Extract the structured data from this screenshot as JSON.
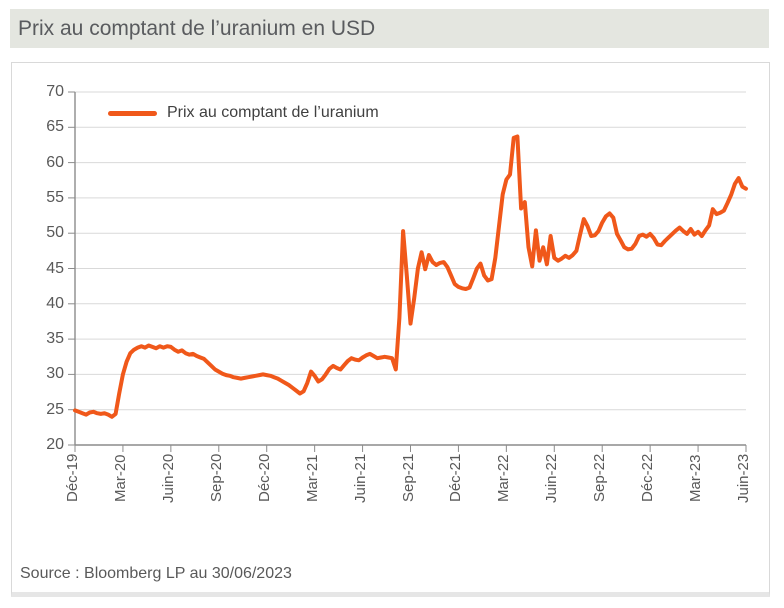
{
  "header": {
    "title": "Prix au comptant de l’uranium en USD"
  },
  "legend": {
    "label": "Prix au comptant de l’uranium"
  },
  "source": {
    "text": "Source : Bloomberg LP au 30/06/2023"
  },
  "colors": {
    "line": "#f0581a",
    "header_bg": "#e4e6e0",
    "axis": "#8c8c8c",
    "grid": "#d9d9d9"
  },
  "chart_data": {
    "type": "line",
    "title": "Prix au comptant de l’uranium en USD",
    "ylabel": "",
    "xlabel": "",
    "ylim": [
      20,
      70
    ],
    "y_ticks": [
      20,
      25,
      30,
      35,
      40,
      45,
      50,
      55,
      60,
      65,
      70
    ],
    "x_tick_labels": [
      "Déc-19",
      "Mar-20",
      "Juin-20",
      "Sep-20",
      "Déc-20",
      "Mar-21",
      "Juin-21",
      "Sep-21",
      "Déc-21",
      "Mar-22",
      "Juin-22",
      "Sep-22",
      "Déc-22",
      "Mar-23",
      "Juin-23"
    ],
    "grid": "horizontal",
    "legend_position": "top-left",
    "series": [
      {
        "name": "Prix au comptant de l’uranium",
        "color": "#f0581a",
        "frequency": "weekly",
        "values": [
          24.9,
          24.7,
          24.5,
          24.3,
          24.6,
          24.7,
          24.5,
          24.4,
          24.5,
          24.3,
          24.0,
          24.4,
          27.3,
          30.0,
          31.8,
          33.0,
          33.5,
          33.8,
          34.0,
          33.8,
          34.1,
          33.9,
          33.7,
          34.0,
          33.8,
          34.0,
          33.9,
          33.5,
          33.2,
          33.4,
          33.0,
          32.8,
          32.9,
          32.6,
          32.4,
          32.2,
          31.7,
          31.2,
          30.7,
          30.4,
          30.1,
          29.9,
          29.8,
          29.6,
          29.5,
          29.4,
          29.5,
          29.6,
          29.7,
          29.8,
          29.9,
          30.0,
          29.9,
          29.8,
          29.6,
          29.4,
          29.1,
          28.8,
          28.5,
          28.1,
          27.7,
          27.3,
          27.6,
          28.8,
          30.4,
          29.8,
          29.0,
          29.3,
          30.0,
          30.8,
          31.2,
          30.9,
          30.7,
          31.3,
          31.9,
          32.3,
          32.1,
          32.0,
          32.4,
          32.7,
          32.9,
          32.6,
          32.3,
          32.4,
          32.5,
          32.4,
          32.3,
          30.7,
          38.0,
          50.3,
          44.0,
          37.2,
          40.8,
          45.0,
          47.3,
          44.9,
          46.9,
          45.9,
          45.5,
          45.8,
          45.9,
          45.2,
          44.0,
          42.8,
          42.4,
          42.2,
          42.1,
          42.3,
          43.6,
          45.0,
          45.7,
          44.0,
          43.3,
          43.5,
          46.5,
          51.0,
          55.5,
          57.6,
          58.3,
          63.5,
          63.7,
          53.5,
          54.4,
          48.0,
          45.3,
          50.4,
          46.1,
          48.0,
          45.6,
          49.6,
          46.5,
          46.1,
          46.4,
          46.8,
          46.5,
          46.9,
          47.5,
          49.8,
          52.0,
          51.0,
          49.6,
          49.7,
          50.3,
          51.5,
          52.4,
          52.8,
          52.2,
          49.9,
          49.0,
          48.0,
          47.7,
          47.8,
          48.5,
          49.6,
          49.8,
          49.5,
          49.9,
          49.3,
          48.4,
          48.3,
          48.9,
          49.4,
          49.9,
          50.4,
          50.8,
          50.3,
          49.9,
          50.6,
          49.8,
          50.2,
          49.6,
          50.4,
          51.1,
          53.4,
          52.7,
          52.9,
          53.2,
          54.3,
          55.5,
          57.0,
          57.8,
          56.6,
          56.3
        ]
      }
    ]
  }
}
